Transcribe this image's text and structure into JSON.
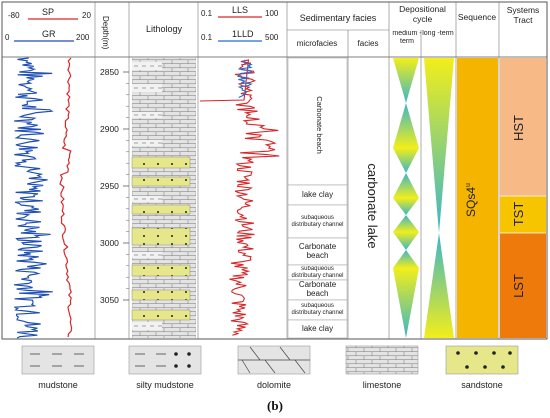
{
  "header": {
    "sp": {
      "label": "SP",
      "min": "-80",
      "max": "20"
    },
    "gr": {
      "label": "GR",
      "min": "0",
      "max": "200"
    },
    "depth": "Depth(m)",
    "lithology": "Lithology",
    "lls": {
      "label": "LLS",
      "min": "0.1",
      "max": "100"
    },
    "lld": {
      "label": "1LLD",
      "min": "0.1",
      "max": "500"
    },
    "sedimentary_facies": "Sedimentary facies",
    "microfacies": "microfacies",
    "facies": "facies",
    "depositional_cycle": "Depositional cycle",
    "medium_term": "medium -term",
    "long_term": "long -term",
    "sequence": "Sequence",
    "systems_tract": "Systems Tract"
  },
  "depth_ticks": [
    "2850",
    "2900",
    "2950",
    "3000",
    "3050"
  ],
  "microfacies": [
    "Carbonate beach",
    "lake clay",
    "subaqueous distributary channel",
    "Carbonate beach",
    "subaqueous distributary channel",
    "Carbonate beach",
    "subaqueous distributary channel",
    "lake clay"
  ],
  "facies": "carbonate lake",
  "sequence": "SQs4",
  "sequence_sup": "u",
  "systems_tracts": [
    "HST",
    "TST",
    "LST"
  ],
  "legend": [
    "mudstone",
    "silty mudstone",
    "dolomite",
    "limestone",
    "sandstone"
  ],
  "caption": "(b)",
  "colors": {
    "sp_curve": "#d62728",
    "gr_curve": "#1f4fb4",
    "lls_curve": "#d62728",
    "lld_curve": "#1f6fd0",
    "sequence": "#f5b400",
    "hst": "#f7b986",
    "tst": "#f7c500",
    "lst": "#ef7a0c",
    "sandstone": "#e6e68a",
    "rock_grey": "#e4e4e4"
  }
}
